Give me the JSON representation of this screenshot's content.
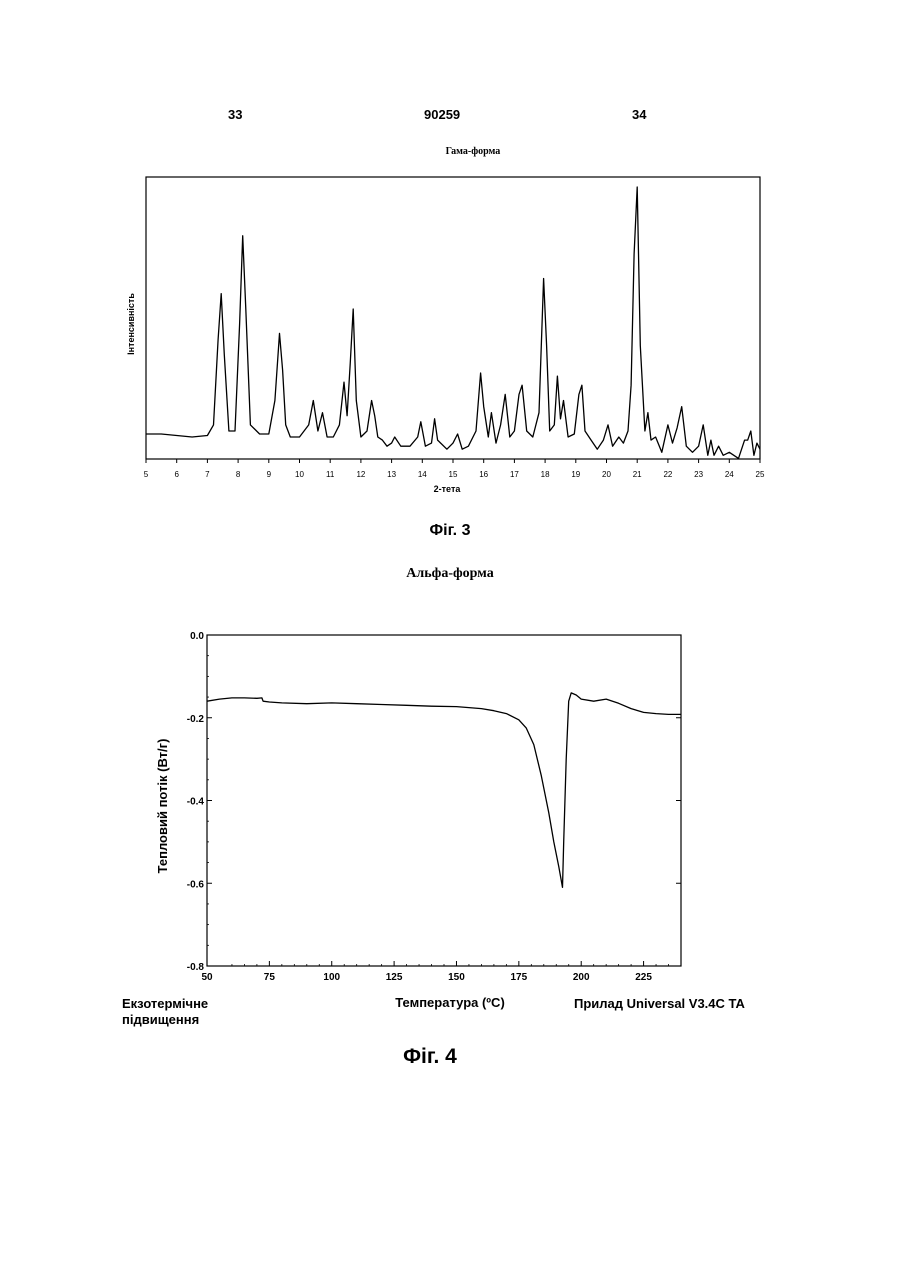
{
  "header": {
    "left_page": "33",
    "doc_number": "90259",
    "right_page": "34"
  },
  "fig3": {
    "caption": "Фіг. 3",
    "chart_data": {
      "type": "line",
      "title": "Гама-форма",
      "xlabel": "2-тета",
      "ylabel": "Інтенсивність",
      "xlim": [
        5,
        25
      ],
      "xticks": [
        5,
        6,
        7,
        8,
        9,
        10,
        11,
        12,
        13,
        14,
        15,
        16,
        17,
        18,
        19,
        20,
        21,
        22,
        23,
        24,
        25
      ],
      "x": [
        5.0,
        5.5,
        6.0,
        6.5,
        7.0,
        7.2,
        7.35,
        7.45,
        7.55,
        7.7,
        7.9,
        8.05,
        8.15,
        8.25,
        8.4,
        8.7,
        9.0,
        9.2,
        9.35,
        9.45,
        9.55,
        9.7,
        10.0,
        10.3,
        10.45,
        10.6,
        10.75,
        10.9,
        11.1,
        11.3,
        11.45,
        11.55,
        11.65,
        11.75,
        11.85,
        12.0,
        12.2,
        12.35,
        12.45,
        12.55,
        12.7,
        12.85,
        13.0,
        13.1,
        13.3,
        13.6,
        13.85,
        13.95,
        14.1,
        14.3,
        14.4,
        14.5,
        14.8,
        15.0,
        15.15,
        15.3,
        15.5,
        15.75,
        15.9,
        16.0,
        16.15,
        16.25,
        16.4,
        16.55,
        16.7,
        16.85,
        17.0,
        17.15,
        17.25,
        17.4,
        17.6,
        17.8,
        17.95,
        18.05,
        18.15,
        18.3,
        18.4,
        18.5,
        18.6,
        18.75,
        18.95,
        19.1,
        19.2,
        19.3,
        19.5,
        19.7,
        19.9,
        20.05,
        20.2,
        20.4,
        20.55,
        20.7,
        20.8,
        20.9,
        21.0,
        21.1,
        21.25,
        21.35,
        21.45,
        21.6,
        21.8,
        22.0,
        22.15,
        22.3,
        22.45,
        22.6,
        22.8,
        23.0,
        23.15,
        23.3,
        23.4,
        23.5,
        23.65,
        23.8,
        24.0,
        24.3,
        24.5,
        24.6,
        24.7,
        24.8,
        24.9,
        25.0
      ],
      "y": [
        0.09,
        0.09,
        0.085,
        0.08,
        0.085,
        0.12,
        0.4,
        0.55,
        0.35,
        0.1,
        0.1,
        0.45,
        0.74,
        0.5,
        0.12,
        0.09,
        0.09,
        0.2,
        0.42,
        0.3,
        0.12,
        0.08,
        0.08,
        0.12,
        0.2,
        0.1,
        0.16,
        0.08,
        0.08,
        0.12,
        0.26,
        0.15,
        0.32,
        0.5,
        0.2,
        0.08,
        0.1,
        0.2,
        0.15,
        0.08,
        0.07,
        0.05,
        0.06,
        0.08,
        0.05,
        0.05,
        0.08,
        0.13,
        0.05,
        0.06,
        0.14,
        0.07,
        0.04,
        0.06,
        0.09,
        0.04,
        0.05,
        0.1,
        0.29,
        0.18,
        0.08,
        0.16,
        0.06,
        0.12,
        0.22,
        0.08,
        0.1,
        0.22,
        0.25,
        0.1,
        0.08,
        0.16,
        0.6,
        0.38,
        0.1,
        0.12,
        0.28,
        0.14,
        0.2,
        0.08,
        0.09,
        0.22,
        0.25,
        0.1,
        0.07,
        0.04,
        0.07,
        0.12,
        0.05,
        0.08,
        0.06,
        0.1,
        0.25,
        0.68,
        0.9,
        0.38,
        0.1,
        0.16,
        0.07,
        0.08,
        0.03,
        0.12,
        0.06,
        0.11,
        0.18,
        0.05,
        0.03,
        0.05,
        0.12,
        0.02,
        0.07,
        0.02,
        0.05,
        0.02,
        0.03,
        0.01,
        0.07,
        0.07,
        0.1,
        0.02,
        0.06,
        0.04
      ]
    }
  },
  "fig4": {
    "title": "Альфа-форма",
    "caption": "Фіг. 4",
    "chart_data": {
      "type": "line",
      "xlabel": "Температура (ºC)",
      "ylabel": "Тепловий потік (Вт/г)",
      "xlim": [
        50,
        240
      ],
      "ylim": [
        -0.8,
        0.0
      ],
      "xticks": [
        50,
        75,
        100,
        125,
        150,
        175,
        200,
        225
      ],
      "yticks": [
        0.0,
        -0.2,
        -0.4,
        -0.6,
        -0.8
      ],
      "ytick_labels": [
        "0.0",
        "-0.2",
        "-0.4",
        "-0.6",
        "-0.8"
      ],
      "x": [
        50,
        55,
        60,
        65,
        70,
        72,
        72.5,
        75,
        80,
        90,
        100,
        110,
        120,
        130,
        140,
        150,
        160,
        165,
        170,
        175,
        178,
        181,
        184,
        187,
        189,
        191,
        192.5,
        193,
        194,
        195,
        196,
        198,
        200,
        205,
        210,
        215,
        220,
        225,
        230,
        235,
        240
      ],
      "y": [
        -0.16,
        -0.155,
        -0.152,
        -0.152,
        -0.153,
        -0.152,
        -0.16,
        -0.162,
        -0.164,
        -0.166,
        -0.164,
        -0.166,
        -0.168,
        -0.17,
        -0.172,
        -0.173,
        -0.178,
        -0.183,
        -0.19,
        -0.205,
        -0.225,
        -0.265,
        -0.34,
        -0.43,
        -0.5,
        -0.56,
        -0.61,
        -0.5,
        -0.3,
        -0.16,
        -0.14,
        -0.145,
        -0.155,
        -0.16,
        -0.155,
        -0.165,
        -0.178,
        -0.187,
        -0.19,
        -0.192,
        -0.192
      ]
    },
    "bottom_left_line1": "Екзотермічне",
    "bottom_left_line2": "підвищення",
    "bottom_right": "Прилад Universal V3.4C TA"
  }
}
